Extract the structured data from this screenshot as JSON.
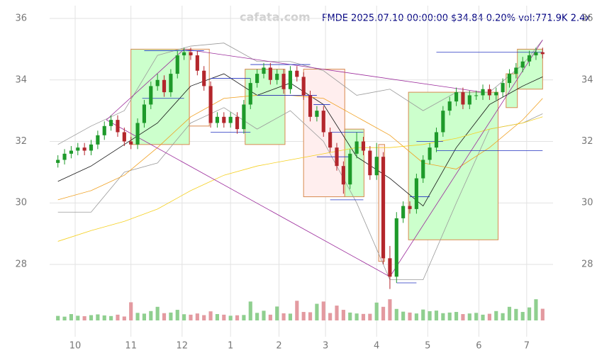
{
  "chart_data": {
    "type": "candlestick",
    "title": "FMDE 2025.07.10 00:00:00 $34.84 0.20% vol:771.9K 2.4x",
    "watermark": "cafata.com",
    "xlim": [
      -0.5,
      73.5
    ],
    "xticks": [
      {
        "value": 2.6,
        "label": "10"
      },
      {
        "value": 11,
        "label": "11"
      },
      {
        "value": 18.7,
        "label": "12"
      },
      {
        "value": 26,
        "label": "1"
      },
      {
        "value": 33.3,
        "label": "2"
      },
      {
        "value": 40.3,
        "label": "3"
      },
      {
        "value": 48,
        "label": "4"
      },
      {
        "value": 55.7,
        "label": "5"
      },
      {
        "value": 63.4,
        "label": "6"
      },
      {
        "value": 70.6,
        "label": "7"
      }
    ],
    "ylim": [
      26.8,
      36.6
    ],
    "yticks": [
      28,
      30,
      32,
      34,
      36
    ],
    "grid": true,
    "up_color": "#1e9a2a",
    "down_color": "#b3262c",
    "open": [
      31.3,
      31.4,
      31.6,
      31.7,
      31.8,
      31.7,
      31.9,
      32.2,
      32.5,
      32.7,
      32.3,
      32.0,
      31.9,
      32.6,
      33.2,
      33.8,
      34.0,
      33.6,
      34.2,
      34.8,
      34.9,
      34.8,
      34.3,
      33.8,
      32.6,
      32.8,
      32.6,
      32.8,
      32.4,
      33.2,
      33.9,
      34.2,
      34.4,
      34.0,
      34.2,
      33.7,
      34.3,
      34.1,
      33.5,
      32.8,
      33.0,
      32.3,
      31.8,
      31.2,
      30.6,
      31.6,
      32.0,
      31.7,
      30.9,
      31.5,
      28.2,
      27.6,
      29.5,
      29.9,
      29.8,
      30.8,
      31.4,
      31.8,
      32.3,
      33.0,
      33.3,
      33.6,
      33.2,
      33.5,
      33.5,
      33.7,
      33.5,
      33.6,
      33.9,
      34.2,
      34.4,
      34.6,
      34.8,
      34.9
    ],
    "high": [
      31.55,
      31.75,
      31.85,
      31.95,
      31.95,
      32.05,
      32.35,
      32.65,
      32.85,
      32.85,
      32.45,
      32.15,
      32.75,
      33.35,
      33.95,
      34.2,
      34.15,
      34.35,
      34.95,
      35.05,
      35.05,
      34.95,
      34.45,
      33.95,
      32.95,
      32.95,
      32.95,
      32.95,
      33.35,
      34.05,
      34.35,
      34.55,
      34.55,
      34.35,
      34.35,
      34.45,
      34.45,
      34.25,
      33.65,
      33.15,
      33.15,
      32.45,
      31.95,
      31.35,
      31.75,
      32.3,
      32.15,
      31.85,
      31.95,
      31.65,
      28.6,
      29.7,
      30.05,
      30.05,
      30.95,
      31.55,
      31.95,
      32.45,
      33.15,
      33.45,
      33.75,
      33.75,
      33.65,
      33.65,
      33.85,
      33.85,
      33.75,
      34.05,
      34.35,
      34.55,
      34.75,
      34.95,
      35.05,
      35.05
    ],
    "low": [
      31.15,
      31.25,
      31.45,
      31.55,
      31.55,
      31.55,
      31.75,
      32.05,
      32.35,
      32.15,
      31.85,
      31.75,
      31.75,
      32.45,
      33.05,
      33.65,
      33.45,
      33.45,
      34.05,
      34.65,
      34.65,
      34.15,
      33.65,
      32.45,
      32.45,
      32.45,
      32.45,
      32.25,
      32.25,
      33.05,
      33.75,
      34.05,
      33.85,
      33.85,
      33.55,
      33.55,
      33.95,
      33.35,
      32.65,
      32.65,
      32.15,
      31.65,
      31.05,
      30.3,
      30.45,
      31.45,
      31.55,
      30.75,
      30.75,
      28.0,
      27.2,
      27.4,
      29.35,
      29.65,
      29.65,
      30.65,
      31.25,
      31.65,
      32.15,
      32.85,
      33.15,
      33.05,
      33.05,
      33.35,
      33.35,
      33.35,
      33.35,
      33.45,
      33.75,
      34.05,
      34.25,
      34.45,
      34.65,
      34.7
    ],
    "close": [
      31.4,
      31.6,
      31.7,
      31.8,
      31.7,
      31.9,
      32.2,
      32.5,
      32.7,
      32.3,
      32.0,
      31.9,
      32.6,
      33.2,
      33.8,
      34.0,
      33.6,
      34.2,
      34.8,
      34.9,
      34.8,
      34.3,
      33.8,
      32.6,
      32.8,
      32.6,
      32.8,
      32.4,
      33.2,
      33.9,
      34.2,
      34.4,
      34.0,
      34.2,
      33.7,
      34.3,
      34.1,
      33.5,
      32.8,
      33.0,
      32.3,
      31.8,
      31.2,
      30.6,
      31.6,
      32.0,
      31.7,
      30.9,
      31.5,
      28.2,
      27.6,
      29.5,
      29.9,
      29.8,
      30.8,
      31.4,
      31.8,
      32.3,
      33.0,
      33.3,
      33.6,
      33.2,
      33.5,
      33.5,
      33.7,
      33.5,
      33.6,
      33.9,
      34.2,
      34.4,
      34.6,
      34.8,
      34.9,
      34.84
    ],
    "volume": [
      300,
      250,
      420,
      310,
      280,
      350,
      400,
      330,
      290,
      380,
      260,
      1200,
      500,
      450,
      620,
      900,
      480,
      520,
      700,
      410,
      380,
      460,
      350,
      600,
      420,
      380,
      310,
      340,
      360,
      1250,
      500,
      640,
      380,
      920,
      470,
      450,
      1300,
      560,
      540,
      1100,
      1250,
      490,
      980,
      700,
      520,
      460,
      430,
      440,
      1180,
      900,
      1400,
      760,
      580,
      520,
      460,
      720,
      610,
      650,
      480,
      520,
      560,
      420,
      460,
      500,
      380,
      440,
      620,
      480,
      900,
      760,
      560,
      860,
      1400,
      771.9
    ],
    "volume_lim": [
      0,
      1500
    ],
    "overlays": [
      {
        "color": "#9a9a9a",
        "x": [
          0,
          5,
          10,
          15,
          20,
          25,
          30,
          35,
          40,
          45,
          50,
          55,
          60,
          65,
          70,
          73
        ],
        "values": [
          31.9,
          32.5,
          33.0,
          34.8,
          35.1,
          35.2,
          34.6,
          34.6,
          34.3,
          33.5,
          33.7,
          33.0,
          33.6,
          33.6,
          34.5,
          35.3
        ]
      },
      {
        "color": "#9a9a9a",
        "x": [
          0,
          5,
          10,
          15,
          20,
          25,
          30,
          35,
          40,
          45,
          50,
          55,
          60,
          65,
          70,
          73
        ],
        "values": [
          29.7,
          29.7,
          31.0,
          31.3,
          32.6,
          33.1,
          32.4,
          33.0,
          32.0,
          30.0,
          27.5,
          27.5,
          30.0,
          32.4,
          32.6,
          32.9
        ]
      },
      {
        "color": "#111111",
        "x": [
          0,
          5,
          10,
          15,
          20,
          25,
          30,
          35,
          40,
          45,
          50,
          55,
          60,
          65,
          70,
          73
        ],
        "values": [
          30.7,
          31.2,
          31.9,
          32.6,
          33.8,
          34.2,
          33.5,
          33.9,
          33.2,
          31.5,
          30.8,
          29.9,
          31.8,
          33.2,
          33.8,
          34.1
        ]
      },
      {
        "color": "#f0a020",
        "x": [
          0,
          5,
          10,
          15,
          20,
          25,
          30,
          35,
          40,
          45,
          50,
          55,
          60,
          65,
          70,
          73
        ],
        "values": [
          30.1,
          30.4,
          30.9,
          31.8,
          32.8,
          33.4,
          33.5,
          33.5,
          33.4,
          32.8,
          32.2,
          31.3,
          31.1,
          31.8,
          32.7,
          33.4
        ]
      },
      {
        "color": "#f5d020",
        "x": [
          0,
          5,
          10,
          15,
          20,
          25,
          30,
          35,
          40,
          45,
          50,
          55,
          60,
          65,
          70,
          73
        ],
        "values": [
          28.75,
          29.1,
          29.4,
          29.8,
          30.4,
          30.9,
          31.2,
          31.4,
          31.6,
          31.8,
          31.8,
          31.9,
          32.1,
          32.4,
          32.6,
          32.8
        ]
      }
    ],
    "boxes": [
      {
        "x0": 11,
        "x1": 19.8,
        "y0": 31.9,
        "y1": 35.0,
        "color": "#ccffcc"
      },
      {
        "x0": 19.8,
        "x1": 22.8,
        "y0": 32.5,
        "y1": 35.0,
        "color": "#ffffff"
      },
      {
        "x0": 28.2,
        "x1": 34.2,
        "y0": 31.9,
        "y1": 34.35,
        "color": "#ccffcc"
      },
      {
        "x0": 37,
        "x1": 43.2,
        "y0": 30.2,
        "y1": 34.35,
        "color": "#ffeeee"
      },
      {
        "x0": 43.2,
        "x1": 46.1,
        "y0": 30.2,
        "y1": 32.4,
        "color": "#ccffcc"
      },
      {
        "x0": 48.3,
        "x1": 49.2,
        "y0": 28.1,
        "y1": 31.9,
        "color": "#ffeeee"
      },
      {
        "x0": 52.8,
        "x1": 66.3,
        "y0": 28.8,
        "y1": 33.6,
        "color": "#ccffcc"
      },
      {
        "x0": 67.5,
        "x1": 69.2,
        "y0": 33.1,
        "y1": 34.2,
        "color": "#ccffcc"
      },
      {
        "x0": 69.2,
        "x1": 73,
        "y0": 33.7,
        "y1": 35.0,
        "color": "#ccffcc"
      }
    ],
    "trend_lines": [
      {
        "x": [
          7.3,
          19,
          64
        ],
        "values": [
          32.7,
          35.0,
          33.6
        ]
      },
      {
        "x": [
          7.3,
          50,
          73
        ],
        "values": [
          32.7,
          27.6,
          35.3
        ]
      }
    ],
    "levels": [
      {
        "x0": 13,
        "x1": 22,
        "y": 34.95
      },
      {
        "x0": 12.7,
        "x1": 19,
        "y": 33.4
      },
      {
        "x0": 23,
        "x1": 29,
        "y": 34.05
      },
      {
        "x0": 23,
        "x1": 29,
        "y": 32.3
      },
      {
        "x0": 29,
        "x1": 38,
        "y": 34.5
      },
      {
        "x0": 30,
        "x1": 39,
        "y": 33.5
      },
      {
        "x0": 38.5,
        "x1": 41,
        "y": 33.2
      },
      {
        "x0": 41,
        "x1": 46,
        "y": 32.3
      },
      {
        "x0": 39,
        "x1": 44,
        "y": 31.5
      },
      {
        "x0": 41,
        "x1": 46,
        "y": 30.1
      },
      {
        "x0": 51,
        "x1": 54,
        "y": 27.4
      },
      {
        "x0": 53,
        "x1": 56,
        "y": 30.2
      },
      {
        "x0": 54,
        "x1": 58,
        "y": 32.0
      },
      {
        "x0": 57,
        "x1": 73,
        "y": 31.7
      },
      {
        "x0": 57,
        "x1": 73,
        "y": 34.9
      }
    ]
  }
}
